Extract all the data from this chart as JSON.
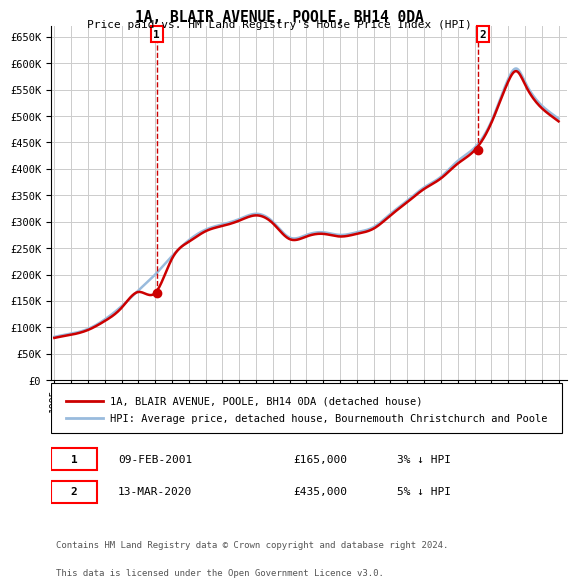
{
  "title": "1A, BLAIR AVENUE, POOLE, BH14 0DA",
  "subtitle": "Price paid vs. HM Land Registry's House Price Index (HPI)",
  "ylabel_ticks": [
    "£0",
    "£50K",
    "£100K",
    "£150K",
    "£200K",
    "£250K",
    "£300K",
    "£350K",
    "£400K",
    "£450K",
    "£500K",
    "£550K",
    "£600K",
    "£650K"
  ],
  "ytick_values": [
    0,
    50000,
    100000,
    150000,
    200000,
    250000,
    300000,
    350000,
    400000,
    450000,
    500000,
    550000,
    600000,
    650000
  ],
  "ylim": [
    0,
    670000
  ],
  "xlim_start": 1994.8,
  "xlim_end": 2025.5,
  "sale1_date": 2001.1,
  "sale1_price": 165000,
  "sale2_date": 2020.2,
  "sale2_price": 435000,
  "grid_color": "#cccccc",
  "hpi_color": "#99bbdd",
  "price_color": "#cc0000",
  "bg_color": "#ffffff",
  "plot_bg_color": "#ffffff",
  "legend_label_red": "1A, BLAIR AVENUE, POOLE, BH14 0DA (detached house)",
  "legend_label_blue": "HPI: Average price, detached house, Bournemouth Christchurch and Poole",
  "annotation1_label": "1",
  "annotation1_text": "09-FEB-2001",
  "annotation1_price": "£165,000",
  "annotation1_hpi": "3% ↓ HPI",
  "annotation2_label": "2",
  "annotation2_text": "13-MAR-2020",
  "annotation2_price": "£435,000",
  "annotation2_hpi": "5% ↓ HPI",
  "footer": "Contains HM Land Registry data © Crown copyright and database right 2024.\nThis data is licensed under the Open Government Licence v3.0.",
  "hpi_keypoints_x": [
    1995,
    1996,
    1997,
    1998,
    1999,
    2000,
    2001,
    2002,
    2003,
    2004,
    2005,
    2006,
    2007,
    2008,
    2009,
    2010,
    2011,
    2012,
    2013,
    2014,
    2015,
    2016,
    2017,
    2018,
    2019,
    2020,
    2021,
    2022,
    2022.5,
    2023,
    2024,
    2025
  ],
  "hpi_keypoints_y": [
    82000,
    88000,
    97000,
    115000,
    140000,
    170000,
    200000,
    235000,
    265000,
    285000,
    295000,
    305000,
    315000,
    300000,
    270000,
    275000,
    280000,
    275000,
    280000,
    290000,
    315000,
    340000,
    365000,
    385000,
    415000,
    440000,
    490000,
    570000,
    590000,
    565000,
    520000,
    495000
  ],
  "red_keypoints_x": [
    1995,
    1996,
    1997,
    1998,
    1999,
    2000,
    2001,
    2002,
    2003,
    2004,
    2005,
    2006,
    2007,
    2008,
    2009,
    2010,
    2011,
    2012,
    2013,
    2014,
    2015,
    2016,
    2017,
    2018,
    2019,
    2020,
    2021,
    2022,
    2022.5,
    2023,
    2024,
    2025
  ],
  "red_keypoints_y": [
    80000,
    86000,
    95000,
    112000,
    137000,
    167000,
    165000,
    230000,
    262000,
    282000,
    292000,
    302000,
    312000,
    297000,
    267000,
    272000,
    277000,
    272000,
    277000,
    287000,
    312000,
    337000,
    362000,
    382000,
    410000,
    435000,
    487000,
    565000,
    585000,
    560000,
    515000,
    490000
  ]
}
